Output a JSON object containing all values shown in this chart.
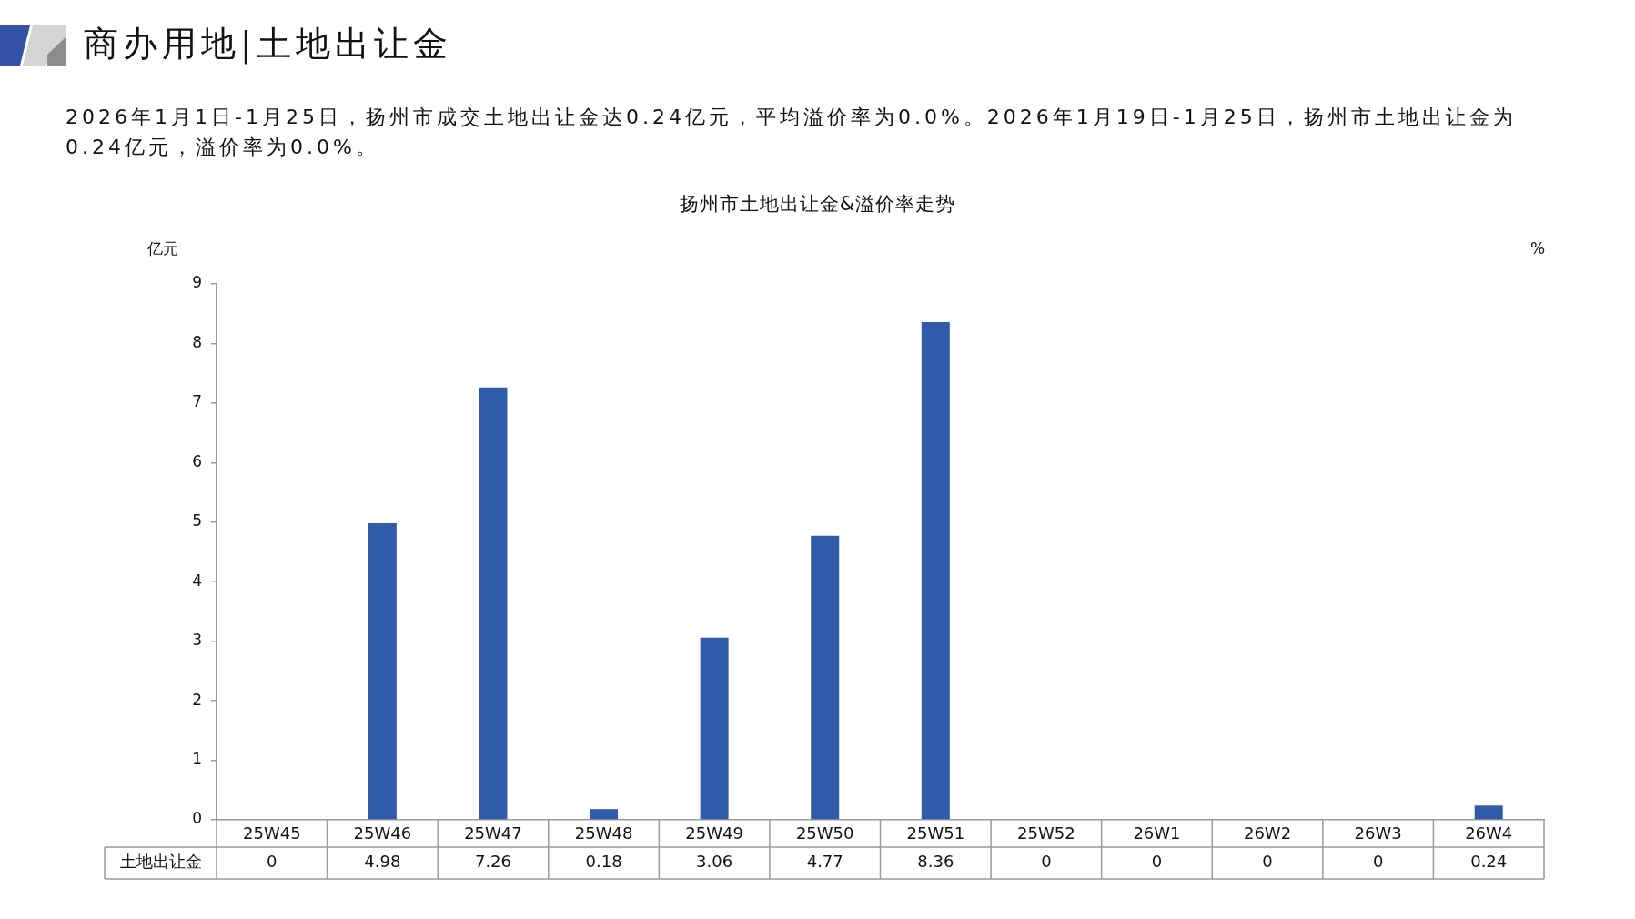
{
  "chart_data": {
    "type": "bar",
    "title": "扬州市土地出让金&溢价率走势",
    "annotations": [
      "商办用地|土地出让金",
      "2026年1月1日-1月25日，扬州市成交土地出让金达0.24亿元，平均溢价率为0.0%。2026年1月19日-1月25日，扬州市土地出让金为0.24亿元，溢价率为0.0%。"
    ],
    "ylabel": "亿元",
    "y2label": "%",
    "categories": [
      "25W45",
      "25W46",
      "25W47",
      "25W48",
      "25W49",
      "25W50",
      "25W51",
      "25W52",
      "26W1",
      "26W2",
      "26W3",
      "26W4"
    ],
    "series": [
      {
        "name": "土地出让金",
        "color": "#2f5ba8",
        "values": [
          0,
          4.98,
          7.26,
          0.18,
          3.06,
          4.77,
          8.36,
          0,
          0,
          0,
          0,
          0.24
        ]
      }
    ],
    "ylim": [
      0,
      9
    ],
    "yticks": [
      0,
      1,
      2,
      3,
      4,
      5,
      6,
      7,
      8,
      9
    ],
    "data_labels": true,
    "legend": false,
    "grid": false
  }
}
